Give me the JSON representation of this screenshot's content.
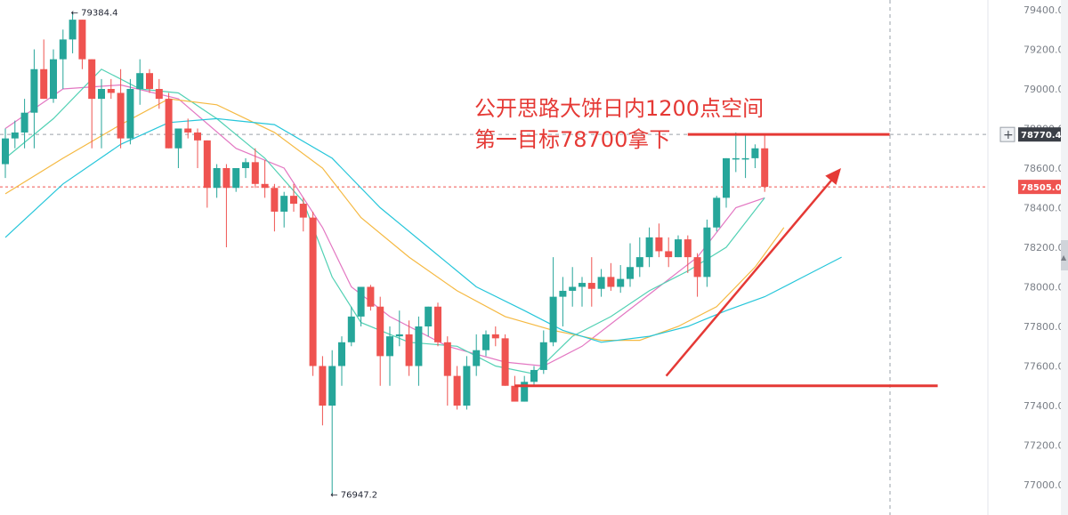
{
  "chart_data": {
    "type": "candlestick",
    "ylim": [
      76900,
      79500
    ],
    "y_ticks": [
      "79400.0",
      "79200.0",
      "79000.0",
      "78800.0",
      "78600.0",
      "78400.0",
      "78200.0",
      "78000.0",
      "77800.0",
      "77600.0",
      "77400.0",
      "77200.0",
      "77000.0"
    ],
    "annotation_line1": "公开思路大饼日内1200点空间",
    "annotation_line2": "第一目标78700拿下",
    "high_label": "← 79384.4",
    "low_label": "← 76947.2",
    "crosshair_price": "78770.4",
    "crosshair_plus": "+",
    "last_price": "78505.0",
    "high_value": 79384.4,
    "low_value": 76947.2,
    "colors": {
      "up": "#26a69a",
      "down": "#ef5350",
      "annotation": "#e53935",
      "ma_fast": "#e377c2",
      "ma_teal": "#52d1b4",
      "ma_yellow": "#f5b942",
      "ma_slow": "#26c6da"
    },
    "candles": [
      [
        78620,
        78800,
        78550,
        78750
      ],
      [
        78750,
        78840,
        78700,
        78780
      ],
      [
        78780,
        78950,
        78700,
        78880
      ],
      [
        78880,
        79200,
        78700,
        79100
      ],
      [
        79100,
        79250,
        78950,
        78950
      ],
      [
        78950,
        79200,
        78930,
        79150
      ],
      [
        79150,
        79300,
        79000,
        79250
      ],
      [
        79250,
        79384,
        79180,
        79350
      ],
      [
        79350,
        79350,
        79100,
        79150
      ],
      [
        79150,
        79150,
        78700,
        78950
      ],
      [
        78950,
        79050,
        78700,
        79000
      ],
      [
        79000,
        79050,
        78950,
        78980
      ],
      [
        78980,
        79100,
        78700,
        78750
      ],
      [
        78750,
        79050,
        78720,
        79000
      ],
      [
        79000,
        79150,
        78920,
        79080
      ],
      [
        79080,
        79100,
        78980,
        79000
      ],
      [
        79000,
        79050,
        78900,
        78950
      ],
      [
        78950,
        78980,
        78700,
        78700
      ],
      [
        78700,
        78800,
        78600,
        78800
      ],
      [
        78800,
        78850,
        78750,
        78780
      ],
      [
        78780,
        78800,
        78600,
        78740
      ],
      [
        78740,
        78740,
        78400,
        78500
      ],
      [
        78500,
        78620,
        78450,
        78600
      ],
      [
        78600,
        78620,
        78200,
        78500
      ],
      [
        78500,
        78600,
        78480,
        78600
      ],
      [
        78600,
        78650,
        78550,
        78630
      ],
      [
        78630,
        78700,
        78500,
        78520
      ],
      [
        78520,
        78640,
        78450,
        78500
      ],
      [
        78500,
        78520,
        78280,
        78380
      ],
      [
        78380,
        78480,
        78300,
        78460
      ],
      [
        78460,
        78520,
        78380,
        78420
      ],
      [
        78420,
        78450,
        78280,
        78350
      ],
      [
        78350,
        78380,
        77550,
        77600
      ],
      [
        77600,
        77650,
        77300,
        77400
      ],
      [
        77400,
        77680,
        76947,
        77600
      ],
      [
        77600,
        77750,
        77500,
        77720
      ],
      [
        77720,
        77900,
        77700,
        77850
      ],
      [
        77850,
        78000,
        77800,
        78000
      ],
      [
        78000,
        78010,
        77880,
        77900
      ],
      [
        77900,
        77950,
        77500,
        77650
      ],
      [
        77650,
        77800,
        77500,
        77750
      ],
      [
        77750,
        77880,
        77700,
        77760
      ],
      [
        77760,
        77830,
        77550,
        77600
      ],
      [
        77600,
        77850,
        77500,
        77800
      ],
      [
        77800,
        77900,
        77750,
        77900
      ],
      [
        77900,
        77920,
        77700,
        77720
      ],
      [
        77720,
        77750,
        77400,
        77550
      ],
      [
        77550,
        77600,
        77380,
        77400
      ],
      [
        77400,
        77650,
        77380,
        77600
      ],
      [
        77600,
        77760,
        77550,
        77680
      ],
      [
        77680,
        77780,
        77650,
        77760
      ],
      [
        77760,
        77800,
        77700,
        77740
      ],
      [
        77740,
        77760,
        77500,
        77500
      ],
      [
        77500,
        77550,
        77440,
        77420
      ],
      [
        77420,
        77550,
        77420,
        77520
      ],
      [
        77520,
        77600,
        77500,
        77580
      ],
      [
        77580,
        77780,
        77560,
        77720
      ],
      [
        77720,
        78150,
        77700,
        77950
      ],
      [
        77950,
        78050,
        77800,
        77980
      ],
      [
        77980,
        78100,
        77900,
        78000
      ],
      [
        78000,
        78050,
        77900,
        78020
      ],
      [
        78020,
        78150,
        77900,
        77990
      ],
      [
        77990,
        78090,
        77950,
        78050
      ],
      [
        78050,
        78120,
        77980,
        78000
      ],
      [
        78000,
        78110,
        77970,
        78040
      ],
      [
        78040,
        78220,
        78000,
        78100
      ],
      [
        78100,
        78250,
        78050,
        78150
      ],
      [
        78150,
        78300,
        78100,
        78250
      ],
      [
        78250,
        78320,
        78150,
        78180
      ],
      [
        78180,
        78250,
        78100,
        78150
      ],
      [
        78150,
        78260,
        78150,
        78240
      ],
      [
        78240,
        78260,
        78070,
        78150
      ],
      [
        78150,
        78170,
        77950,
        78050
      ],
      [
        78050,
        78340,
        78000,
        78300
      ],
      [
        78300,
        78460,
        78280,
        78450
      ],
      [
        78450,
        78650,
        78400,
        78650
      ],
      [
        78650,
        78780,
        78580,
        78650
      ],
      [
        78650,
        78770,
        78550,
        78650
      ],
      [
        78650,
        78720,
        78600,
        78700
      ],
      [
        78700,
        78770,
        78480,
        78505
      ]
    ],
    "ma_series": [
      {
        "key": "ma_fast",
        "values": [
          [
            0,
            78800
          ],
          [
            6,
            79000
          ],
          [
            12,
            79020
          ],
          [
            18,
            78950
          ],
          [
            24,
            78700
          ],
          [
            29,
            78600
          ],
          [
            33,
            78300
          ],
          [
            36,
            78000
          ],
          [
            40,
            77850
          ],
          [
            46,
            77700
          ],
          [
            52,
            77620
          ],
          [
            56,
            77600
          ],
          [
            60,
            77700
          ],
          [
            64,
            77850
          ],
          [
            68,
            78000
          ],
          [
            72,
            78150
          ],
          [
            76,
            78400
          ],
          [
            79,
            78450
          ]
        ]
      },
      {
        "key": "ma_teal",
        "values": [
          [
            0,
            78650
          ],
          [
            5,
            78850
          ],
          [
            10,
            79100
          ],
          [
            14,
            79000
          ],
          [
            18,
            78980
          ],
          [
            22,
            78850
          ],
          [
            27,
            78650
          ],
          [
            31,
            78430
          ],
          [
            34,
            78050
          ],
          [
            37,
            77820
          ],
          [
            42,
            77720
          ],
          [
            47,
            77700
          ],
          [
            51,
            77600
          ],
          [
            55,
            77560
          ],
          [
            59,
            77750
          ],
          [
            63,
            77850
          ],
          [
            67,
            77980
          ],
          [
            71,
            78080
          ],
          [
            75,
            78200
          ],
          [
            79,
            78450
          ]
        ]
      },
      {
        "key": "ma_yellow",
        "values": [
          [
            0,
            78470
          ],
          [
            6,
            78650
          ],
          [
            12,
            78820
          ],
          [
            17,
            78950
          ],
          [
            22,
            78920
          ],
          [
            28,
            78780
          ],
          [
            33,
            78600
          ],
          [
            37,
            78350
          ],
          [
            42,
            78150
          ],
          [
            47,
            77980
          ],
          [
            52,
            77850
          ],
          [
            57,
            77780
          ],
          [
            62,
            77730
          ],
          [
            66,
            77730
          ],
          [
            70,
            77800
          ],
          [
            74,
            77900
          ],
          [
            78,
            78100
          ],
          [
            81,
            78300
          ]
        ]
      },
      {
        "key": "ma_slow",
        "values": [
          [
            0,
            78250
          ],
          [
            6,
            78520
          ],
          [
            12,
            78720
          ],
          [
            17,
            78830
          ],
          [
            22,
            78850
          ],
          [
            28,
            78820
          ],
          [
            34,
            78650
          ],
          [
            39,
            78400
          ],
          [
            44,
            78200
          ],
          [
            49,
            78000
          ],
          [
            54,
            77880
          ],
          [
            58,
            77780
          ],
          [
            62,
            77720
          ],
          [
            67,
            77750
          ],
          [
            71,
            77800
          ],
          [
            75,
            77880
          ],
          [
            79,
            77950
          ],
          [
            83,
            78050
          ],
          [
            87,
            78150
          ]
        ]
      }
    ],
    "horizontal_lines": [
      {
        "price": 78770,
        "x_from": 71,
        "x_to": 92
      },
      {
        "price": 77500,
        "x_from": 53,
        "x_to": 97
      }
    ],
    "arrow": {
      "from": [
        62,
        77550
      ],
      "to": [
        80,
        78600
      ]
    }
  }
}
